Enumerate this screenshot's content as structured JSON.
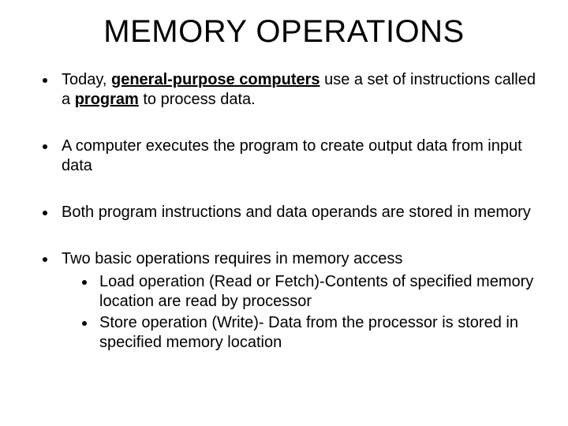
{
  "title": "MEMORY OPERATIONS",
  "bullets": {
    "b1_pre": "Today, ",
    "b1_bold1": "general-purpose computers",
    "b1_mid": " use a set of instructions called a ",
    "b1_bold2": "program",
    "b1_post": " to process data.",
    "b2": " A computer executes the program to create output data from input data",
    "b3": "Both program instructions and data operands are stored in memory",
    "b4": "Two basic operations requires in memory access",
    "b4a": "Load operation  (Read or Fetch)-Contents of specified memory location are read by processor",
    "b4b": "Store operation  (Write)- Data from the processor is stored in specified memory location"
  },
  "styling": {
    "background_color": "#ffffff",
    "text_color": "#000000",
    "title_fontsize": 40,
    "body_fontsize": 20,
    "font_family": "Arial"
  }
}
